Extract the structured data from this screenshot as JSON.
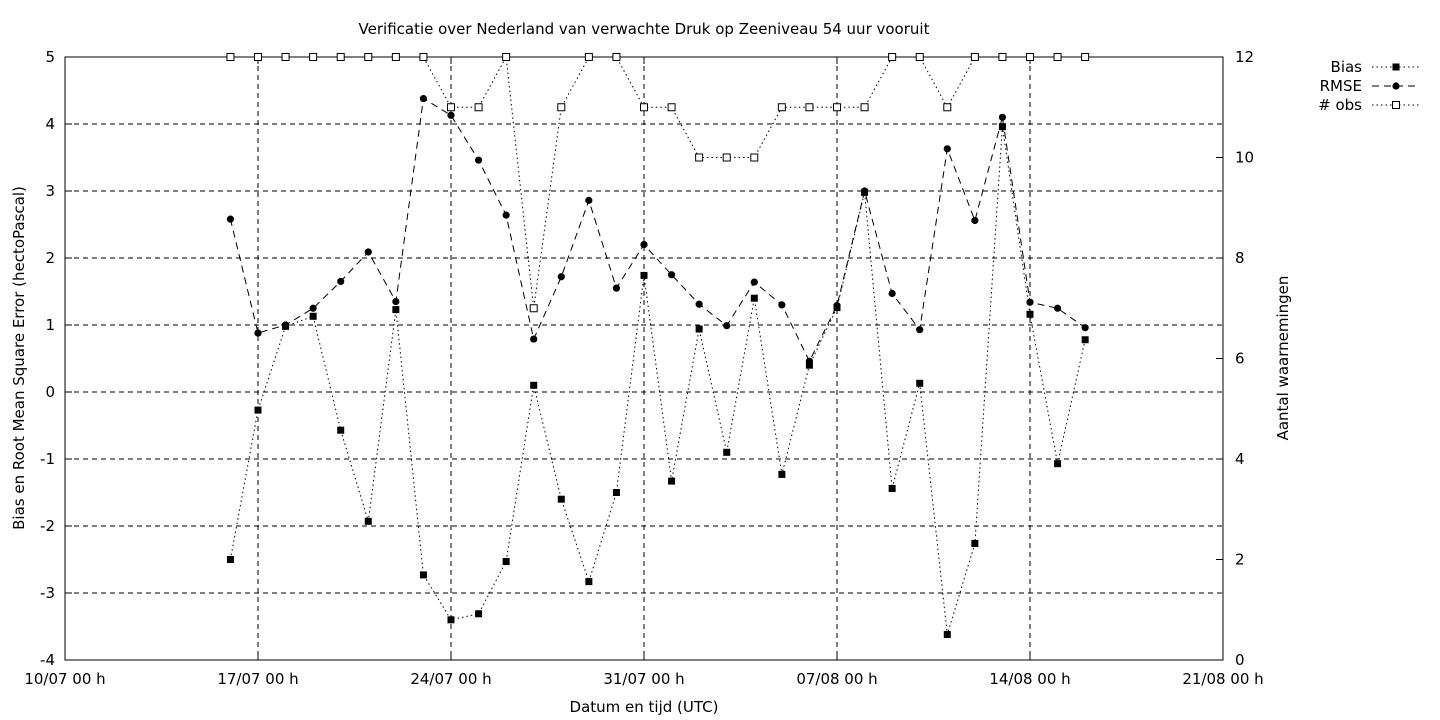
{
  "chart_data": {
    "type": "line",
    "title": "Verificatie over Nederland van verwachte Druk op Zeeniveau 54 uur vooruit",
    "xlabel": "Datum en tijd (UTC)",
    "ylabel": "Bias en Root Mean Square Error (hectoPascal)",
    "y2label": "Aantal waarnemingen",
    "xlim_days": [
      0,
      42
    ],
    "ylim": [
      -4,
      5
    ],
    "y2lim": [
      0,
      12
    ],
    "x_ticks": [
      {
        "day": 0,
        "label": "10/07 00 h"
      },
      {
        "day": 7,
        "label": "17/07 00 h"
      },
      {
        "day": 14,
        "label": "24/07 00 h"
      },
      {
        "day": 21,
        "label": "31/07 00 h"
      },
      {
        "day": 28,
        "label": "07/08 00 h"
      },
      {
        "day": 35,
        "label": "14/08 00 h"
      },
      {
        "day": 42,
        "label": "21/08 00 h"
      }
    ],
    "y_ticks": [
      "5",
      "4",
      "3",
      "2",
      "1",
      "0",
      "-1",
      "-2",
      "-3",
      "-4"
    ],
    "y2_ticks": [
      "12",
      "10",
      "8",
      "6",
      "4",
      "2",
      "0"
    ],
    "grid": true,
    "legend_position": "outside-top-right",
    "x_days": [
      6,
      7,
      8,
      9,
      10,
      11,
      12,
      13,
      14,
      15,
      16,
      17,
      18,
      19,
      20,
      21,
      22,
      23,
      24,
      25,
      26,
      27,
      28,
      29,
      30,
      31,
      32,
      33,
      34,
      35,
      36,
      37
    ],
    "series": [
      {
        "name": "Bias",
        "axis": "left",
        "style": "dotted",
        "marker": "filled-square",
        "values": [
          -2.5,
          -0.27,
          0.98,
          1.13,
          -0.57,
          -1.93,
          1.23,
          -2.73,
          -3.4,
          -3.31,
          -2.53,
          0.1,
          -1.6,
          -2.83,
          -1.5,
          1.74,
          -1.33,
          0.94,
          -0.9,
          1.4,
          -1.23,
          0.4,
          1.26,
          2.98,
          -1.44,
          0.13,
          -3.62,
          -2.26,
          3.96,
          1.16,
          -1.07,
          0.78
        ]
      },
      {
        "name": "RMSE",
        "axis": "left",
        "style": "dashed",
        "marker": "filled-circle",
        "values": [
          2.58,
          0.88,
          1.0,
          1.25,
          1.65,
          2.09,
          1.35,
          4.38,
          4.13,
          3.46,
          2.64,
          0.79,
          1.72,
          2.86,
          1.55,
          2.2,
          1.75,
          1.31,
          0.99,
          1.64,
          1.3,
          0.46,
          1.29,
          3.0,
          1.47,
          0.93,
          3.63,
          2.56,
          4.1,
          1.34,
          1.25,
          0.96
        ]
      },
      {
        "name": "# obs",
        "axis": "right",
        "style": "dotted",
        "marker": "open-square",
        "values": [
          12,
          12,
          12,
          12,
          12,
          12,
          12,
          12,
          11,
          11,
          12,
          7,
          11,
          12,
          12,
          11,
          11,
          10,
          10,
          10,
          11,
          11,
          11,
          11,
          12,
          12,
          11,
          12,
          12,
          12,
          12,
          12
        ]
      }
    ]
  }
}
